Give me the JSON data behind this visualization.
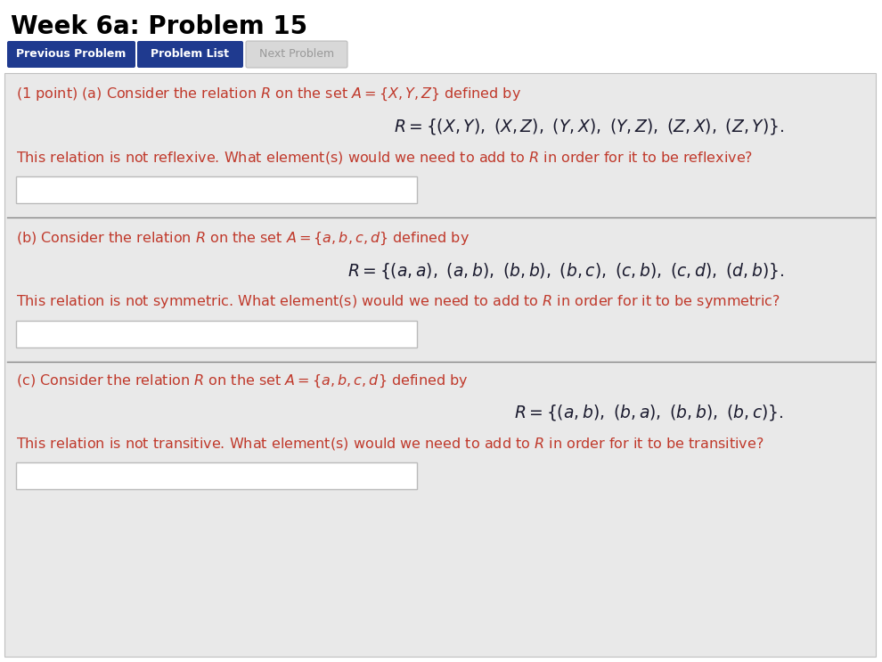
{
  "title": "Week 6a: Problem 15",
  "bg_color": "#ffffff",
  "panel_bg": "#e9e9e9",
  "btn1_text": "Previous Problem",
  "btn2_text": "Problem List",
  "btn3_text": "Next Problem",
  "btn_active_color": "#1f3a8f",
  "btn_inactive_color": "#d8d8d8",
  "btn_active_text_color": "#ffffff",
  "btn_inactive_text_color": "#999999",
  "red_color": "#c0392b",
  "dark_color": "#1a1a2e",
  "math_color": "#1a1a2e",
  "normal_text_color": "#333333"
}
